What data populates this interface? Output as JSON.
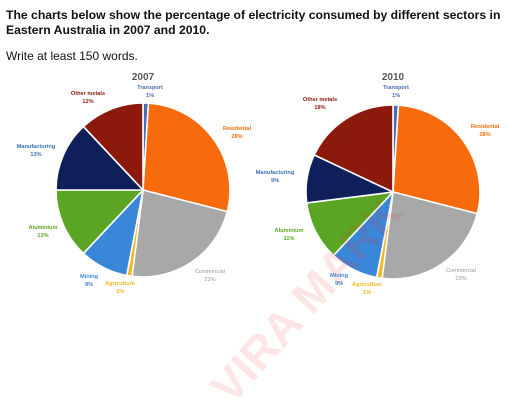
{
  "prompt": {
    "title": "The charts below show the percentage of electricity consumed by different sectors in Eastern Australia in 2007 and 2010.",
    "instruction": "Write at least 150 words."
  },
  "watermark": "VIRA MARK",
  "chart_data": [
    {
      "type": "pie",
      "title": "2007",
      "slices": [
        {
          "name": "Transport",
          "value": 1,
          "label": "1%",
          "color": "#4a6bb5"
        },
        {
          "name": "Residental",
          "value": 28,
          "label": "28%",
          "color": "#f76b0c"
        },
        {
          "name": "Commercial",
          "value": 23,
          "label": "23%",
          "color": "#a8a8a8"
        },
        {
          "name": "Agriculture",
          "value": 1,
          "label": "1%",
          "color": "#f2b81c"
        },
        {
          "name": "Mining",
          "value": 9,
          "label": "9%",
          "color": "#3a86d8"
        },
        {
          "name": "Aluminium",
          "value": 13,
          "label": "13%",
          "color": "#5aa624"
        },
        {
          "name": "Manufacturing",
          "value": 13,
          "label": "13%",
          "color": "#0f1f5a"
        },
        {
          "name": "Other metals",
          "value": 12,
          "label": "12%",
          "color": "#8c1a0c"
        }
      ]
    },
    {
      "type": "pie",
      "title": "2010",
      "slices": [
        {
          "name": "Transport",
          "value": 1,
          "label": "1%",
          "color": "#4a6bb5"
        },
        {
          "name": "Residental",
          "value": 28,
          "label": "28%",
          "color": "#f76b0c"
        },
        {
          "name": "Commercial",
          "value": 23,
          "label": "23%",
          "color": "#a8a8a8"
        },
        {
          "name": "Agriculture",
          "value": 1,
          "label": "1%",
          "color": "#f2b81c"
        },
        {
          "name": "Mining",
          "value": 9,
          "label": "9%",
          "color": "#3a86d8"
        },
        {
          "name": "Aluminium",
          "value": 11,
          "label": "11%",
          "color": "#5aa624"
        },
        {
          "name": "Manufacturing",
          "value": 9,
          "label": "9%",
          "color": "#0f1f5a"
        },
        {
          "name": "Other metals",
          "value": 18,
          "label": "18%",
          "color": "#8c1a0c"
        }
      ]
    }
  ]
}
